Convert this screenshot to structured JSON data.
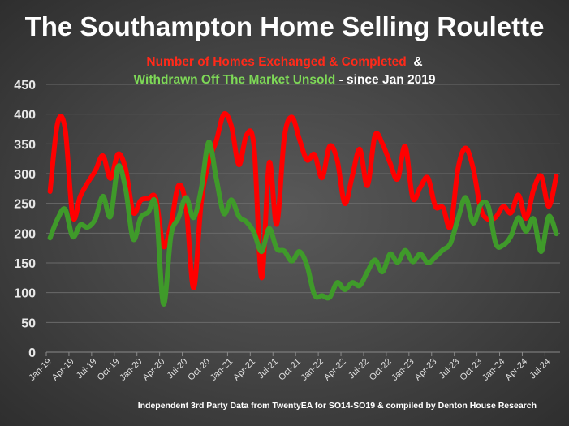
{
  "title": "The Southampton Home Selling Roulette",
  "subtitle_line1_red": "Number of Homes Exchanged & Completed",
  "subtitle_line1_white": "&",
  "subtitle_line2_green": "Withdrawn Off The Market Unsold",
  "subtitle_line2_white": "- since Jan 2019",
  "footer": "Independent 3rd Party Data from TwentyEA for SO14-SO19 & compiled by Denton House Research",
  "chart_data": {
    "type": "line",
    "title": "The Southampton Home Selling Roulette",
    "xlabel": "",
    "ylabel": "",
    "ylim": [
      0,
      450
    ],
    "yticks": [
      0,
      50,
      100,
      150,
      200,
      250,
      300,
      350,
      400,
      450
    ],
    "grid": true,
    "x_start": "Jan-19",
    "x_end": "Aug-24",
    "xtick_labels": [
      "Jan-19",
      "Apr-19",
      "Jul-19",
      "Oct-19",
      "Jan-20",
      "Apr-20",
      "Jul-20",
      "Oct-20",
      "Jan-21",
      "Apr-21",
      "Jul-21",
      "Oct-21",
      "Jan-22",
      "Apr-22",
      "Jul-22",
      "Oct-22",
      "Jan-23",
      "Apr-23",
      "Jul-23",
      "Oct-23",
      "Jan-24",
      "Apr-24",
      "Jul-24"
    ],
    "series": [
      {
        "name": "Number of Homes Exchanged & Completed",
        "color": "#ff0000",
        "values": [
          270,
          385,
          375,
          228,
          262,
          285,
          305,
          330,
          292,
          333,
          308,
          235,
          255,
          258,
          258,
          178,
          215,
          280,
          245,
          108,
          250,
          320,
          355,
          400,
          380,
          315,
          365,
          345,
          125,
          318,
          215,
          360,
          395,
          358,
          323,
          332,
          293,
          346,
          323,
          250,
          296,
          341,
          280,
          364,
          350,
          318,
          291,
          346,
          259,
          277,
          293,
          245,
          243,
          211,
          309,
          343,
          309,
          241,
          223,
          227,
          245,
          234,
          264,
          225,
          273,
          296,
          245,
          296
        ]
      },
      {
        "name": "Withdrawn Off The Market Unsold",
        "color": "#3f9a2a",
        "values": [
          192,
          224,
          240,
          194,
          214,
          210,
          224,
          262,
          228,
          312,
          274,
          190,
          226,
          235,
          247,
          81,
          196,
          226,
          260,
          226,
          274,
          353,
          292,
          233,
          256,
          228,
          219,
          201,
          169,
          208,
          174,
          170,
          153,
          169,
          146,
          96,
          95,
          92,
          117,
          105,
          117,
          112,
          135,
          155,
          135,
          165,
          151,
          171,
          152,
          165,
          150,
          160,
          172,
          183,
          225,
          260,
          217,
          248,
          245,
          182,
          180,
          195,
          226,
          203,
          224,
          169,
          228,
          199
        ]
      }
    ]
  }
}
